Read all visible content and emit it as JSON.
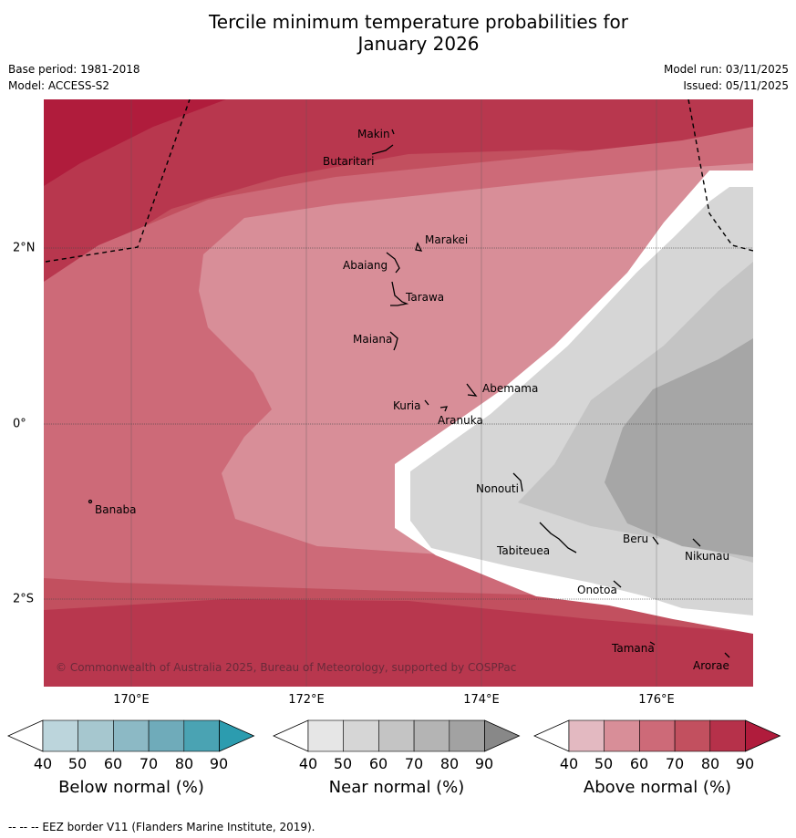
{
  "header": {
    "title_line1": "Tercile minimum temperature probabilities for",
    "title_line2": "January 2026",
    "base_period": "Base period: 1981-2018",
    "model": "Model: ACCESS-S2",
    "model_run": "Model run: 03/11/2025",
    "issued": "Issued: 05/11/2025"
  },
  "map": {
    "lon_labels": [
      "170°E",
      "172°E",
      "174°E",
      "176°E"
    ],
    "lat_labels": [
      "2°N",
      "0°",
      "2°S"
    ],
    "places": {
      "makin": "Makin",
      "butaritari": "Butaritari",
      "marakei": "Marakei",
      "abaiang": "Abaiang",
      "tarawa": "Tarawa",
      "maiana": "Maiana",
      "abemama": "Abemama",
      "kuria": "Kuria",
      "aranuka": "Aranuka",
      "banaba": "Banaba",
      "nonouti": "Nonouti",
      "beru": "Beru",
      "tabiteuea": "Tabiteuea",
      "nikunau": "Nikunau",
      "onotoa": "Onotoa",
      "tamana": "Tamana",
      "arorae": "Arorae"
    },
    "copyright": "© Commonwealth of Australia 2025, Bureau of Meteorology, supported by COSPPac"
  },
  "legend": {
    "below_label": "Below normal (%)",
    "near_label": "Near normal (%)",
    "above_label": "Above normal (%)",
    "tick_values": [
      "40",
      "50",
      "60",
      "70",
      "80",
      "90"
    ],
    "below_colors": [
      "#ffffff",
      "#bcd5dc",
      "#a6c7cf",
      "#8cb9c5",
      "#6fabba",
      "#4aa3b3",
      "#2c9caf"
    ],
    "near_colors": [
      "#ffffff",
      "#e6e6e6",
      "#d6d6d6",
      "#c4c4c4",
      "#b4b4b4",
      "#a2a2a2",
      "#888888"
    ],
    "above_colors": [
      "#ffffff",
      "#e3b9c1",
      "#d88e98",
      "#cd6a78",
      "#c2505f",
      "#b6314a",
      "#b01c3c"
    ]
  },
  "footnote": "-- -- -- EEZ border V11 (Flanders Marine Institute, 2019)."
}
